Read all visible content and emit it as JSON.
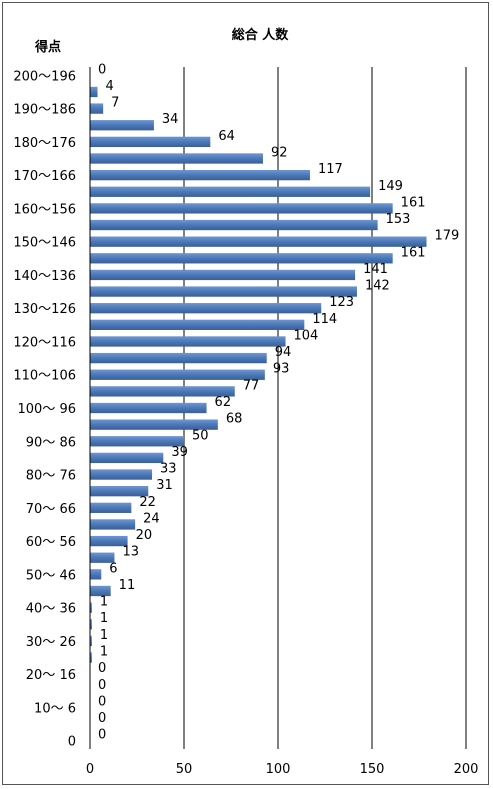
{
  "chart_data": {
    "type": "bar",
    "orientation": "horizontal",
    "title": "総合 人数",
    "ylabel": "得点",
    "xlim": [
      0,
      200
    ],
    "x_ticks": [
      0,
      50,
      100,
      150,
      200
    ],
    "grid": "vertical",
    "bar_color": "#4a78b8",
    "categories": [
      "200〜196",
      "",
      "190〜186",
      "",
      "180〜176",
      "",
      "170〜166",
      "",
      "160〜156",
      "",
      "150〜146",
      "",
      "140〜136",
      "",
      "130〜126",
      "",
      "120〜116",
      "",
      "110〜106",
      "",
      "100〜 96",
      "",
      "90〜 86",
      "",
      "80〜 76",
      "",
      "70〜 66",
      "",
      "60〜 56",
      "",
      "50〜 46",
      "",
      "40〜 36",
      "",
      "30〜 26",
      "",
      "20〜 16",
      "",
      "10〜 6",
      "",
      "0"
    ],
    "values": [
      0,
      4,
      7,
      34,
      64,
      92,
      117,
      149,
      161,
      153,
      179,
      161,
      141,
      142,
      123,
      114,
      104,
      94,
      93,
      77,
      62,
      68,
      50,
      39,
      33,
      31,
      22,
      24,
      20,
      13,
      6,
      11,
      1,
      1,
      1,
      1,
      0,
      0,
      0,
      0,
      0
    ]
  }
}
